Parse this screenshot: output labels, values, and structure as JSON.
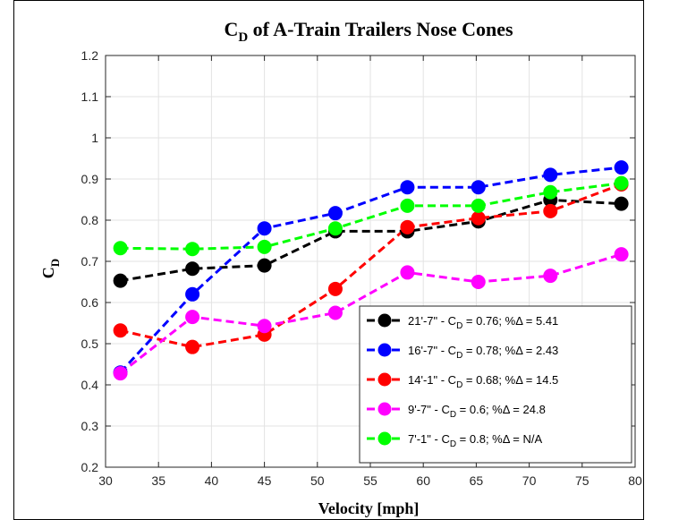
{
  "chart_data": {
    "type": "line",
    "title": {
      "main": "C",
      "sub": "D",
      "rest": " of A-Train Trailers Nose Cones"
    },
    "xlabel": "Velocity [mph]",
    "ylabel": {
      "main": "C",
      "sub": "D"
    },
    "xlim": [
      30,
      80
    ],
    "ylim": [
      0.2,
      1.2
    ],
    "xticks": [
      30,
      35,
      40,
      45,
      50,
      55,
      60,
      65,
      70,
      75,
      80
    ],
    "yticks": [
      0.2,
      0.3,
      0.4,
      0.5,
      0.6,
      0.7,
      0.8,
      0.9,
      1.0,
      1.1,
      1.2
    ],
    "ytick_labels": [
      "0.2",
      "0.3",
      "0.4",
      "0.5",
      "0.6",
      "0.7",
      "0.8",
      "0.9",
      "1",
      "1.1",
      "1.2"
    ],
    "grid": true,
    "legend_position": "bottom-right",
    "x": [
      31.4,
      38.2,
      45.0,
      51.7,
      58.5,
      65.2,
      72.0,
      78.7
    ],
    "series": [
      {
        "name": "21'-7\" - C_D = 0.76; %Δ = 5.41",
        "label_prefix": "21'-7\" - C",
        "label_sub": "D",
        "label_suffix": " = 0.76; %Δ = 5.41",
        "color": "#000000",
        "values": [
          0.653,
          0.682,
          0.69,
          0.773,
          0.773,
          0.797,
          0.849,
          0.84
        ]
      },
      {
        "name": "16'-7\" - C_D = 0.78; %Δ = 2.43",
        "label_prefix": "16'-7\" - C",
        "label_sub": "D",
        "label_suffix": " = 0.78; %Δ = 2.43",
        "color": "#0000ff",
        "values": [
          0.43,
          0.62,
          0.78,
          0.817,
          0.88,
          0.88,
          0.91,
          0.928
        ]
      },
      {
        "name": "14'-1\" - C_D = 0.68; %Δ = 14.5",
        "label_prefix": "14'-1\" - C",
        "label_sub": "D",
        "label_suffix": " = 0.68; %Δ = 14.5",
        "color": "#ff0000",
        "values": [
          0.532,
          0.492,
          0.522,
          0.633,
          0.783,
          0.805,
          0.822,
          0.887
        ]
      },
      {
        "name": "9'-7\" - C_D = 0.6; %Δ = 24.8",
        "label_prefix": "9'-7\" - C",
        "label_sub": "D",
        "label_suffix": " = 0.6; %Δ = 24.8",
        "color": "#ff00ff",
        "values": [
          0.428,
          0.565,
          0.543,
          0.575,
          0.673,
          0.65,
          0.665,
          0.717
        ]
      },
      {
        "name": "7'-1\" - C_D = 0.8; %Δ = N/A",
        "label_prefix": "7'-1\" - C",
        "label_sub": "D",
        "label_suffix": " = 0.8; %Δ = N/A",
        "color": "#00ff00",
        "values": [
          0.732,
          0.73,
          0.735,
          0.78,
          0.835,
          0.835,
          0.868,
          0.89
        ]
      }
    ]
  }
}
